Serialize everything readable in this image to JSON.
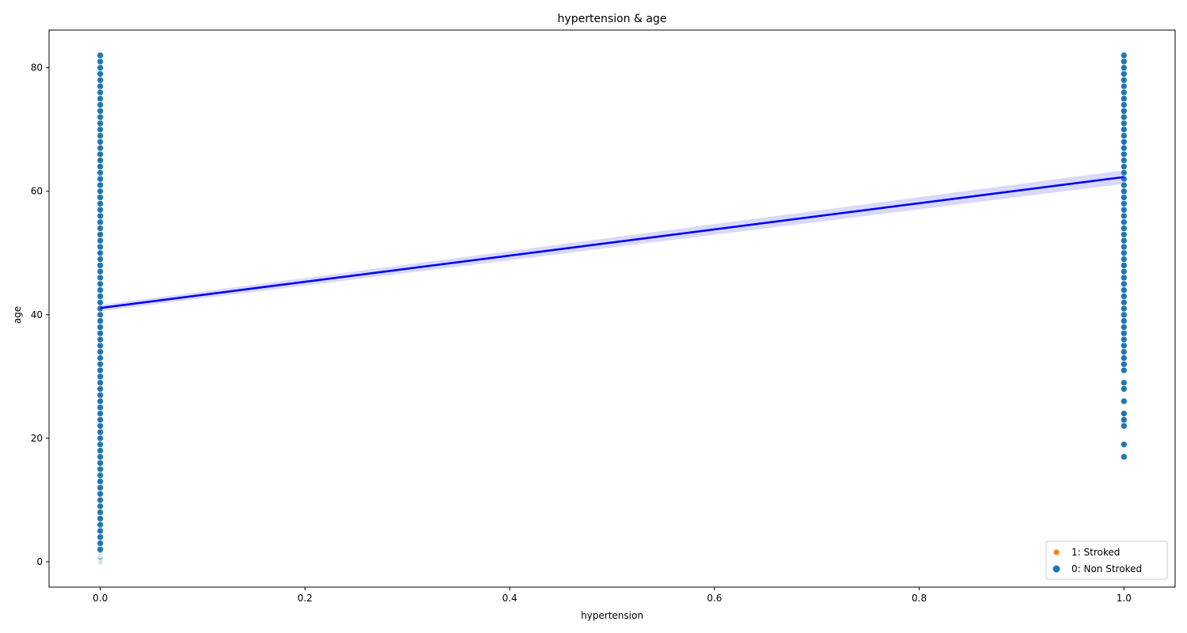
{
  "chart_data": {
    "type": "scatter",
    "title": "hypertension & age",
    "xlabel": "hypertension",
    "ylabel": "age",
    "xlim": [
      -0.05,
      1.05
    ],
    "ylim": [
      -4.1,
      86.1
    ],
    "xticks": [
      0.0,
      0.2,
      0.4,
      0.6,
      0.8,
      1.0
    ],
    "xtick_labels": [
      "0.0",
      "0.2",
      "0.4",
      "0.6",
      "0.8",
      "1.0"
    ],
    "yticks": [
      0,
      20,
      40,
      60,
      80
    ],
    "ytick_labels": [
      "0",
      "20",
      "40",
      "60",
      "80"
    ],
    "grid": false,
    "legend_position": "lower-right",
    "series": [
      {
        "name": "1: Stroked",
        "color": "#ff7f0e",
        "points": []
      },
      {
        "name": "0: Non Stroked",
        "color": "#1f77b4",
        "points": [
          {
            "x": 0,
            "y": 0.08
          },
          {
            "x": 0,
            "y": 0.16
          },
          {
            "x": 0,
            "y": 0.24
          },
          {
            "x": 0,
            "y": 0.32
          },
          {
            "x": 0,
            "y": 0.4
          },
          {
            "x": 0,
            "y": 0.48
          },
          {
            "x": 0,
            "y": 0.56
          },
          {
            "x": 0,
            "y": 0.64
          },
          {
            "x": 0,
            "y": 0.72
          },
          {
            "x": 0,
            "y": 0.8
          },
          {
            "x": 0,
            "y": 0.88
          },
          {
            "x": 0,
            "y": 1.08
          },
          {
            "x": 0,
            "y": 1.16
          },
          {
            "x": 0,
            "y": 1.24
          },
          {
            "x": 0,
            "y": 1.32
          },
          {
            "x": 0,
            "y": 1.4
          },
          {
            "x": 0,
            "y": 1.48
          },
          {
            "x": 0,
            "y": 1.56
          },
          {
            "x": 0,
            "y": 1.64
          },
          {
            "x": 0,
            "y": 1.72
          },
          {
            "x": 0,
            "y": 1.8
          },
          {
            "x": 0,
            "y": 1.88
          },
          {
            "x": 0,
            "y": 2
          },
          {
            "x": 0,
            "y": 3
          },
          {
            "x": 0,
            "y": 4
          },
          {
            "x": 0,
            "y": 5
          },
          {
            "x": 0,
            "y": 6
          },
          {
            "x": 0,
            "y": 7
          },
          {
            "x": 0,
            "y": 8
          },
          {
            "x": 0,
            "y": 9
          },
          {
            "x": 0,
            "y": 10
          },
          {
            "x": 0,
            "y": 11
          },
          {
            "x": 0,
            "y": 12
          },
          {
            "x": 0,
            "y": 13
          },
          {
            "x": 0,
            "y": 14
          },
          {
            "x": 0,
            "y": 15
          },
          {
            "x": 0,
            "y": 16
          },
          {
            "x": 0,
            "y": 17
          },
          {
            "x": 0,
            "y": 18
          },
          {
            "x": 0,
            "y": 19
          },
          {
            "x": 0,
            "y": 20
          },
          {
            "x": 0,
            "y": 21
          },
          {
            "x": 0,
            "y": 22
          },
          {
            "x": 0,
            "y": 23
          },
          {
            "x": 0,
            "y": 24
          },
          {
            "x": 0,
            "y": 25
          },
          {
            "x": 0,
            "y": 26
          },
          {
            "x": 0,
            "y": 27
          },
          {
            "x": 0,
            "y": 28
          },
          {
            "x": 0,
            "y": 29
          },
          {
            "x": 0,
            "y": 30
          },
          {
            "x": 0,
            "y": 31
          },
          {
            "x": 0,
            "y": 32
          },
          {
            "x": 0,
            "y": 33
          },
          {
            "x": 0,
            "y": 34
          },
          {
            "x": 0,
            "y": 35
          },
          {
            "x": 0,
            "y": 36
          },
          {
            "x": 0,
            "y": 37
          },
          {
            "x": 0,
            "y": 38
          },
          {
            "x": 0,
            "y": 39
          },
          {
            "x": 0,
            "y": 40
          },
          {
            "x": 0,
            "y": 41
          },
          {
            "x": 0,
            "y": 42
          },
          {
            "x": 0,
            "y": 43
          },
          {
            "x": 0,
            "y": 44
          },
          {
            "x": 0,
            "y": 45
          },
          {
            "x": 0,
            "y": 46
          },
          {
            "x": 0,
            "y": 47
          },
          {
            "x": 0,
            "y": 48
          },
          {
            "x": 0,
            "y": 49
          },
          {
            "x": 0,
            "y": 50
          },
          {
            "x": 0,
            "y": 51
          },
          {
            "x": 0,
            "y": 52
          },
          {
            "x": 0,
            "y": 53
          },
          {
            "x": 0,
            "y": 54
          },
          {
            "x": 0,
            "y": 55
          },
          {
            "x": 0,
            "y": 56
          },
          {
            "x": 0,
            "y": 57
          },
          {
            "x": 0,
            "y": 58
          },
          {
            "x": 0,
            "y": 59
          },
          {
            "x": 0,
            "y": 60
          },
          {
            "x": 0,
            "y": 61
          },
          {
            "x": 0,
            "y": 62
          },
          {
            "x": 0,
            "y": 63
          },
          {
            "x": 0,
            "y": 64
          },
          {
            "x": 0,
            "y": 65
          },
          {
            "x": 0,
            "y": 66
          },
          {
            "x": 0,
            "y": 67
          },
          {
            "x": 0,
            "y": 68
          },
          {
            "x": 0,
            "y": 69
          },
          {
            "x": 0,
            "y": 70
          },
          {
            "x": 0,
            "y": 71
          },
          {
            "x": 0,
            "y": 72
          },
          {
            "x": 0,
            "y": 73
          },
          {
            "x": 0,
            "y": 74
          },
          {
            "x": 0,
            "y": 75
          },
          {
            "x": 0,
            "y": 76
          },
          {
            "x": 0,
            "y": 77
          },
          {
            "x": 0,
            "y": 78
          },
          {
            "x": 0,
            "y": 79
          },
          {
            "x": 0,
            "y": 80
          },
          {
            "x": 0,
            "y": 81
          },
          {
            "x": 0,
            "y": 82
          },
          {
            "x": 1,
            "y": 17
          },
          {
            "x": 1,
            "y": 19
          },
          {
            "x": 1,
            "y": 22
          },
          {
            "x": 1,
            "y": 23
          },
          {
            "x": 1,
            "y": 24
          },
          {
            "x": 1,
            "y": 26
          },
          {
            "x": 1,
            "y": 28
          },
          {
            "x": 1,
            "y": 29
          },
          {
            "x": 1,
            "y": 31
          },
          {
            "x": 1,
            "y": 32
          },
          {
            "x": 1,
            "y": 33
          },
          {
            "x": 1,
            "y": 34
          },
          {
            "x": 1,
            "y": 35
          },
          {
            "x": 1,
            "y": 36
          },
          {
            "x": 1,
            "y": 37
          },
          {
            "x": 1,
            "y": 38
          },
          {
            "x": 1,
            "y": 39
          },
          {
            "x": 1,
            "y": 40
          },
          {
            "x": 1,
            "y": 41
          },
          {
            "x": 1,
            "y": 42
          },
          {
            "x": 1,
            "y": 43
          },
          {
            "x": 1,
            "y": 44
          },
          {
            "x": 1,
            "y": 45
          },
          {
            "x": 1,
            "y": 46
          },
          {
            "x": 1,
            "y": 47
          },
          {
            "x": 1,
            "y": 48
          },
          {
            "x": 1,
            "y": 49
          },
          {
            "x": 1,
            "y": 50
          },
          {
            "x": 1,
            "y": 51
          },
          {
            "x": 1,
            "y": 52
          },
          {
            "x": 1,
            "y": 53
          },
          {
            "x": 1,
            "y": 54
          },
          {
            "x": 1,
            "y": 55
          },
          {
            "x": 1,
            "y": 56
          },
          {
            "x": 1,
            "y": 57
          },
          {
            "x": 1,
            "y": 58
          },
          {
            "x": 1,
            "y": 59
          },
          {
            "x": 1,
            "y": 60
          },
          {
            "x": 1,
            "y": 61
          },
          {
            "x": 1,
            "y": 62
          },
          {
            "x": 1,
            "y": 63
          },
          {
            "x": 1,
            "y": 64
          },
          {
            "x": 1,
            "y": 65
          },
          {
            "x": 1,
            "y": 66
          },
          {
            "x": 1,
            "y": 67
          },
          {
            "x": 1,
            "y": 68
          },
          {
            "x": 1,
            "y": 69
          },
          {
            "x": 1,
            "y": 70
          },
          {
            "x": 1,
            "y": 71
          },
          {
            "x": 1,
            "y": 72
          },
          {
            "x": 1,
            "y": 73
          },
          {
            "x": 1,
            "y": 74
          },
          {
            "x": 1,
            "y": 75
          },
          {
            "x": 1,
            "y": 76
          },
          {
            "x": 1,
            "y": 77
          },
          {
            "x": 1,
            "y": 78
          },
          {
            "x": 1,
            "y": 79
          },
          {
            "x": 1,
            "y": 80
          },
          {
            "x": 1,
            "y": 81
          },
          {
            "x": 1,
            "y": 82
          }
        ]
      }
    ],
    "regression": {
      "color": "#0000ff",
      "band_color": "#0000ff",
      "x": [
        0,
        1
      ],
      "y": [
        41.1,
        62.3
      ],
      "ci_lower": [
        40.6,
        61.2
      ],
      "ci_upper": [
        41.6,
        63.4
      ]
    }
  }
}
